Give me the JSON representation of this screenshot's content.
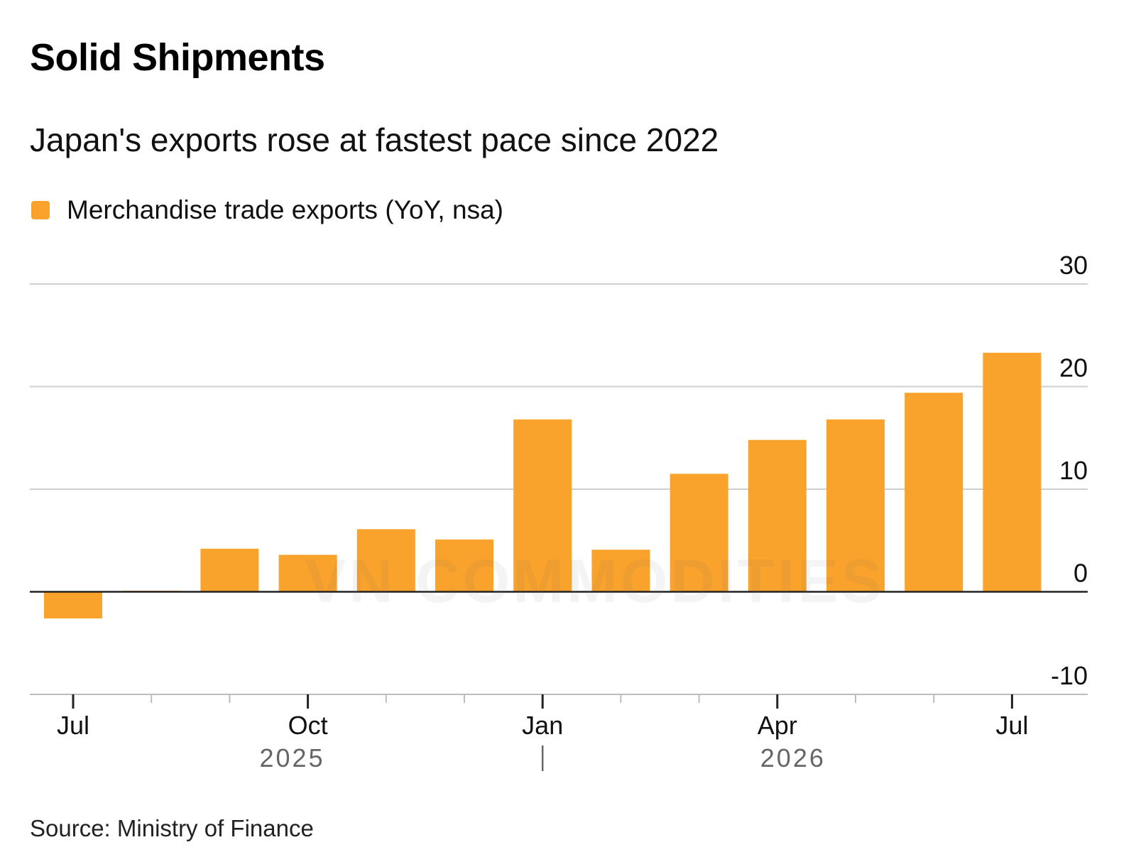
{
  "header": {
    "title": "Solid Shipments",
    "subtitle": "Japan's exports rose at fastest pace since 2022"
  },
  "legend": {
    "label": "Merchandise trade exports (YoY, nsa)",
    "color": "#f9a22c"
  },
  "footer": {
    "source": "Source: Ministry of Finance"
  },
  "watermark": "VN COMMODITIES",
  "chart_data": {
    "type": "bar",
    "categories": [
      "Jul 2025",
      "Aug 2025",
      "Sep 2025",
      "Oct 2025",
      "Nov 2025",
      "Dec 2025",
      "Jan 2026",
      "Feb 2026",
      "Mar 2026",
      "Apr 2026",
      "May 2026",
      "Jun 2026",
      "Jul 2026"
    ],
    "series": [
      {
        "name": "Merchandise trade exports (YoY, nsa)",
        "values": [
          -2.6,
          0.1,
          4.2,
          3.6,
          6.1,
          5.1,
          16.8,
          4.1,
          11.5,
          14.8,
          16.8,
          19.4,
          23.3
        ]
      }
    ],
    "ylim": [
      -10,
      30
    ],
    "yticks": [
      30,
      20,
      10,
      0,
      -10
    ],
    "x_tick_labels": [
      {
        "label": "Jul",
        "index": 0
      },
      {
        "label": "Oct",
        "index": 3
      },
      {
        "label": "Jan",
        "index": 6
      },
      {
        "label": "Apr",
        "index": 9
      },
      {
        "label": "Jul",
        "index": 12
      }
    ],
    "year_labels": [
      {
        "label": "2025",
        "index": 2.8
      },
      {
        "label": "2026",
        "index": 9.2
      }
    ],
    "year_divider_index": 6,
    "bar_color": "#f9a22c",
    "grid": true,
    "legend_position": "top-left"
  }
}
